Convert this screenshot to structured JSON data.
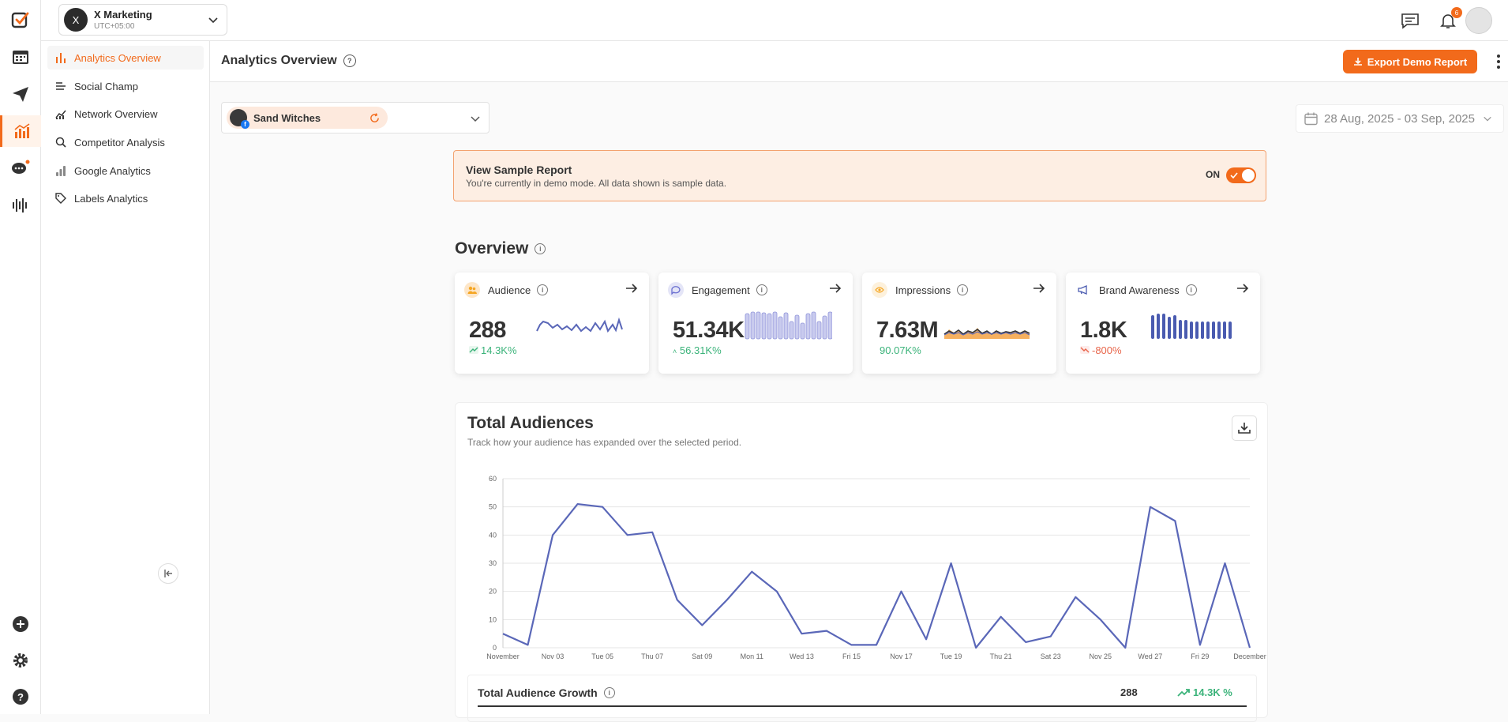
{
  "workspace": {
    "initial": "X",
    "name": "X Marketing",
    "timezone": "UTC+05:00"
  },
  "notifications": {
    "count": "6"
  },
  "nav": {
    "items": [
      {
        "label": "Analytics Overview",
        "active": true
      },
      {
        "label": "Social Champ"
      },
      {
        "label": "Network Overview"
      },
      {
        "label": "Competitor Analysis"
      },
      {
        "label": "Google Analytics"
      },
      {
        "label": "Labels Analytics"
      }
    ]
  },
  "page": {
    "title": "Analytics Overview",
    "export_label": "Export Demo Report"
  },
  "account": {
    "name": "Sand Witches",
    "network_letter": "f"
  },
  "date_range": "28 Aug, 2025 - 03 Sep, 2025",
  "banner": {
    "title": "View Sample Report",
    "subtitle": "You're currently in demo mode. All data shown is sample data.",
    "toggle_label": "ON",
    "toggle_on": true
  },
  "overview": {
    "title": "Overview",
    "cards": [
      {
        "label": "Audience",
        "value": "288",
        "change": "14.3K%",
        "trend": "up",
        "change_color": "#3bb37a",
        "accent": "#f5a623"
      },
      {
        "label": "Engagement",
        "value": "51.34K",
        "change": "56.31K%",
        "trend": "up",
        "change_color": "#3bb37a",
        "accent": "#6a6fd0"
      },
      {
        "label": "Impressions",
        "value": "7.63M",
        "change": "90.07K%",
        "trend": "up",
        "change_color": "#3bb37a",
        "accent": "#f5a623"
      },
      {
        "label": "Brand Awareness",
        "value": "1.8K",
        "change": "-800%",
        "trend": "down",
        "change_color": "#e8664b",
        "accent": "#4a5bb0"
      }
    ]
  },
  "total_audiences": {
    "title": "Total Audiences",
    "subtitle": "Track how your audience has expanded over the selected period.",
    "growth_label": "Total Audience Growth",
    "growth_value": "288",
    "growth_percent": "14.3K %"
  },
  "chart_data": {
    "type": "line",
    "series_color": "#5a67b8",
    "ylim": [
      0,
      60
    ],
    "yticks": [
      0,
      10,
      20,
      30,
      40,
      50,
      60
    ],
    "x_labels": [
      "November",
      "Nov 03",
      "Tue 05",
      "Thu 07",
      "Sat 09",
      "Mon 11",
      "Wed 13",
      "Fri 15",
      "Nov 17",
      "Tue 19",
      "Thu 21",
      "Sat 23",
      "Nov 25",
      "Wed 27",
      "Fri 29",
      "December"
    ],
    "values": [
      5,
      1,
      40,
      51,
      50,
      40,
      41,
      17,
      8,
      17,
      27,
      20,
      5,
      6,
      1,
      1,
      20,
      3,
      30,
      0,
      11,
      2,
      4,
      18,
      10,
      0,
      50,
      45,
      1,
      30,
      0
    ],
    "grid": true
  }
}
